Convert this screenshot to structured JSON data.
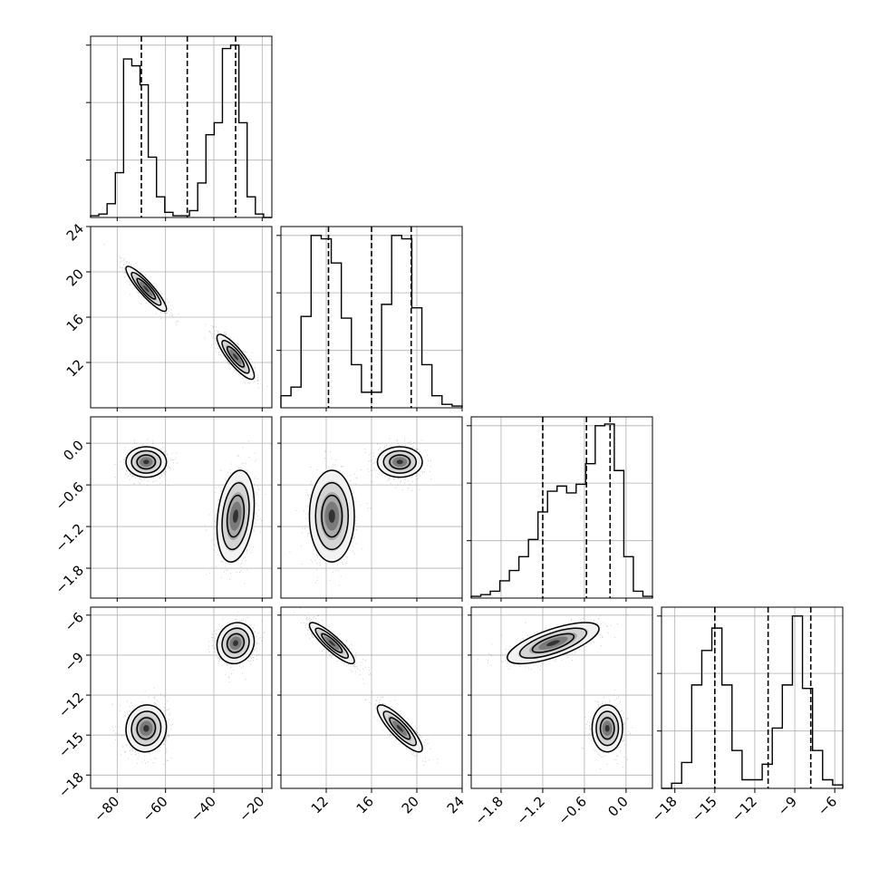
{
  "chart_data": {
    "type": "corner",
    "parameters": [
      {
        "range": [
          -91,
          -16
        ],
        "ticks": [
          -80,
          -60,
          -40,
          -20
        ],
        "tick_labels": [
          "−80",
          "−60",
          "−40",
          "−20"
        ],
        "quantiles": [
          -70,
          -51,
          -31
        ],
        "hist": [
          0.01,
          0.02,
          0.08,
          0.26,
          0.92,
          0.88,
          0.77,
          0.35,
          0.12,
          0.03,
          0.01,
          0.01,
          0.04,
          0.2,
          0.48,
          0.55,
          0.98,
          1.0,
          0.55,
          0.12,
          0.02,
          0.0
        ]
      },
      {
        "range": [
          8,
          24
        ],
        "ticks": [
          12,
          16,
          20,
          24
        ],
        "tick_labels": [
          "12",
          "16",
          "20",
          "24"
        ],
        "quantiles": [
          12.2,
          16,
          19.5
        ],
        "hist": [
          0.07,
          0.12,
          0.53,
          1.0,
          0.98,
          0.84,
          0.52,
          0.25,
          0.09,
          0.09,
          0.6,
          1.0,
          0.98,
          0.58,
          0.25,
          0.07,
          0.02,
          0.01
        ]
      },
      {
        "range": [
          -2.23,
          0.38
        ],
        "ticks": [
          -1.8,
          -1.2,
          -0.6,
          0.0
        ],
        "tick_labels": [
          "−1.8",
          "−1.2",
          "−0.6",
          "0.0"
        ],
        "quantiles": [
          -1.2,
          -0.57,
          -0.23
        ],
        "hist": [
          0.01,
          0.02,
          0.04,
          0.1,
          0.16,
          0.24,
          0.34,
          0.5,
          0.62,
          0.65,
          0.61,
          0.66,
          0.78,
          1.0,
          1.01,
          0.74,
          0.24,
          0.04,
          0.01
        ]
      },
      {
        "range": [
          -19,
          -5.4
        ],
        "ticks": [
          -18,
          -15,
          -12,
          -9,
          -6
        ],
        "tick_labels": [
          "−18",
          "−15",
          "−12",
          "−9",
          "−6"
        ],
        "quantiles": [
          -15,
          -11,
          -7.8
        ],
        "hist": [
          0.0,
          0.03,
          0.15,
          0.6,
          0.8,
          0.93,
          0.6,
          0.22,
          0.05,
          0.05,
          0.14,
          0.35,
          0.6,
          1.0,
          0.58,
          0.22,
          0.05,
          0.02
        ]
      }
    ],
    "clusters": [
      {
        "center": [
          -68,
          18.5,
          -0.27,
          -14.5
        ],
        "sd": [
          3.8,
          0.9,
          0.1,
          0.8
        ],
        "corr": {
          "0-1": -0.9,
          "1-3": -0.85,
          "0-3": 0.05,
          "0-2": 0.0,
          "1-2": 0.0,
          "2-3": 0.0
        }
      },
      {
        "center": [
          -31,
          12.5,
          -1.05,
          -8.1
        ],
        "sd": [
          3.5,
          0.9,
          0.3,
          0.7
        ],
        "corr": {
          "0-1": -0.85,
          "1-3": -0.88,
          "0-3": 0.1,
          "0-2": 0.25,
          "1-2": 0.0,
          "2-3": 0.7
        }
      }
    ],
    "hist_grid_fractions": [
      0.333,
      0.667,
      1.0
    ],
    "contour_levels": [
      1.0,
      1.6,
      2.2
    ],
    "axis_labels": [],
    "grid": true
  }
}
